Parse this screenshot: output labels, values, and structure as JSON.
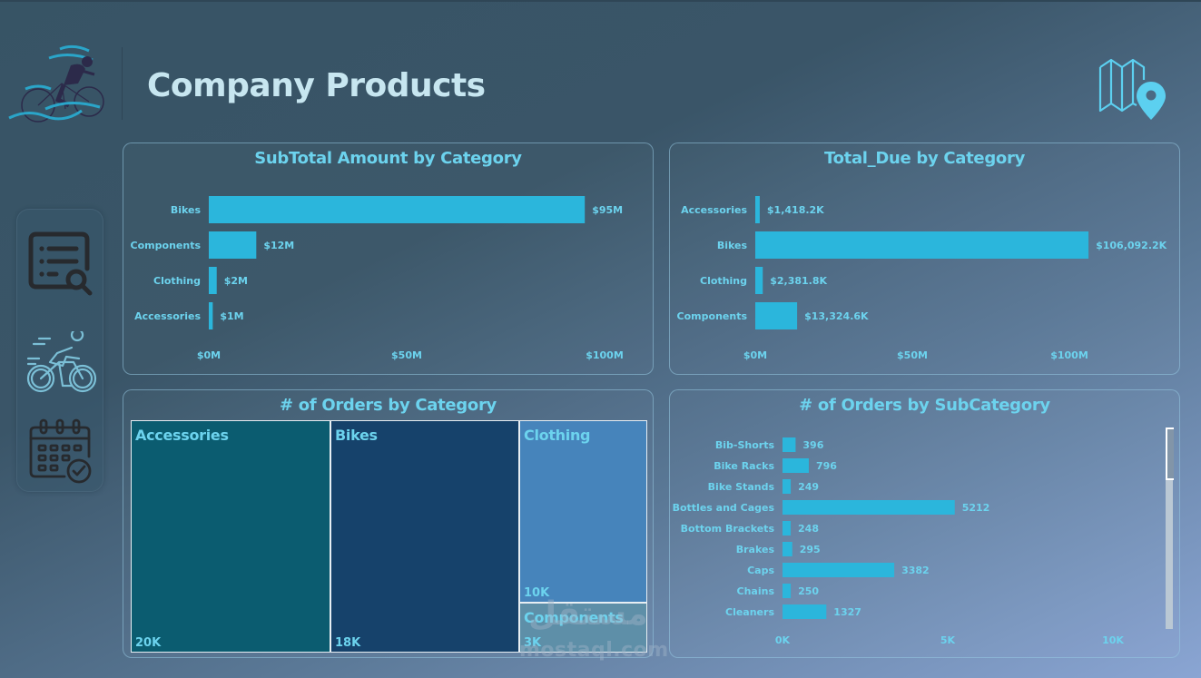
{
  "header": {
    "title": "Company Products",
    "logo_icon": "cyclist-logo",
    "map_icon": "map-pin-icon"
  },
  "sidebar": {
    "items": [
      {
        "name": "report-search",
        "icon": "list-search-icon"
      },
      {
        "name": "cyclist",
        "icon": "cyclist-icon"
      },
      {
        "name": "calendar",
        "icon": "calendar-check-icon"
      }
    ]
  },
  "colors": {
    "bar": "#2bb6dc",
    "label": "#6cd3ee",
    "title_text": "#c7e6f0",
    "treemap": [
      "#0b5c70",
      "#16426b",
      "#4684bb",
      "#5e8fa8"
    ]
  },
  "watermark": {
    "arabic": "مستقل",
    "latin": "mostaql.com"
  },
  "chart_data": [
    {
      "id": "subtotal",
      "type": "bar",
      "orientation": "horizontal",
      "title": "SubTotal Amount by Category",
      "categories": [
        "Bikes",
        "Components",
        "Clothing",
        "Accessories"
      ],
      "values": [
        95,
        12,
        2,
        1
      ],
      "value_labels": [
        "$95M",
        "$12M",
        "$2M",
        "$1M"
      ],
      "unit": "$M",
      "xlim": [
        0,
        100
      ],
      "x_ticks": [
        0,
        50,
        100
      ],
      "x_tick_labels": [
        "$0M",
        "$50M",
        "$100M"
      ]
    },
    {
      "id": "totaldue",
      "type": "bar",
      "orientation": "horizontal",
      "title": "Total_Due by Category",
      "categories": [
        "Accessories",
        "Bikes",
        "Clothing",
        "Components"
      ],
      "values": [
        1418.2,
        106092.2,
        2381.8,
        13324.6
      ],
      "value_labels": [
        "$1,418.2K",
        "$106,092.2K",
        "$2,381.8K",
        "$13,324.6K"
      ],
      "unit": "$K",
      "xlim": [
        0,
        125000
      ],
      "x_ticks": [
        0,
        50000,
        100000
      ],
      "x_tick_labels": [
        "$0M",
        "$50M",
        "$100M"
      ]
    },
    {
      "id": "orders-cat",
      "type": "treemap",
      "title": "# of Orders by Category",
      "categories": [
        "Accessories",
        "Bikes",
        "Clothing",
        "Components"
      ],
      "values": [
        20,
        18,
        10,
        3
      ],
      "value_labels": [
        "20K",
        "18K",
        "10K",
        "3K"
      ],
      "unit": "K orders"
    },
    {
      "id": "orders-sub",
      "type": "bar",
      "orientation": "horizontal",
      "title": "# of Orders by SubCategory",
      "categories": [
        "Bib-Shorts",
        "Bike Racks",
        "Bike Stands",
        "Bottles and Cages",
        "Bottom Brackets",
        "Brakes",
        "Caps",
        "Chains",
        "Cleaners"
      ],
      "values": [
        396,
        796,
        249,
        5212,
        248,
        295,
        3382,
        250,
        1327
      ],
      "value_labels": [
        "396",
        "796",
        "249",
        "5212",
        "248",
        "295",
        "3382",
        "250",
        "1327"
      ],
      "xlim": [
        0,
        10000
      ],
      "x_ticks": [
        0,
        5000,
        10000
      ],
      "x_tick_labels": [
        "0K",
        "5K",
        "10K"
      ],
      "scrollable": true
    }
  ]
}
